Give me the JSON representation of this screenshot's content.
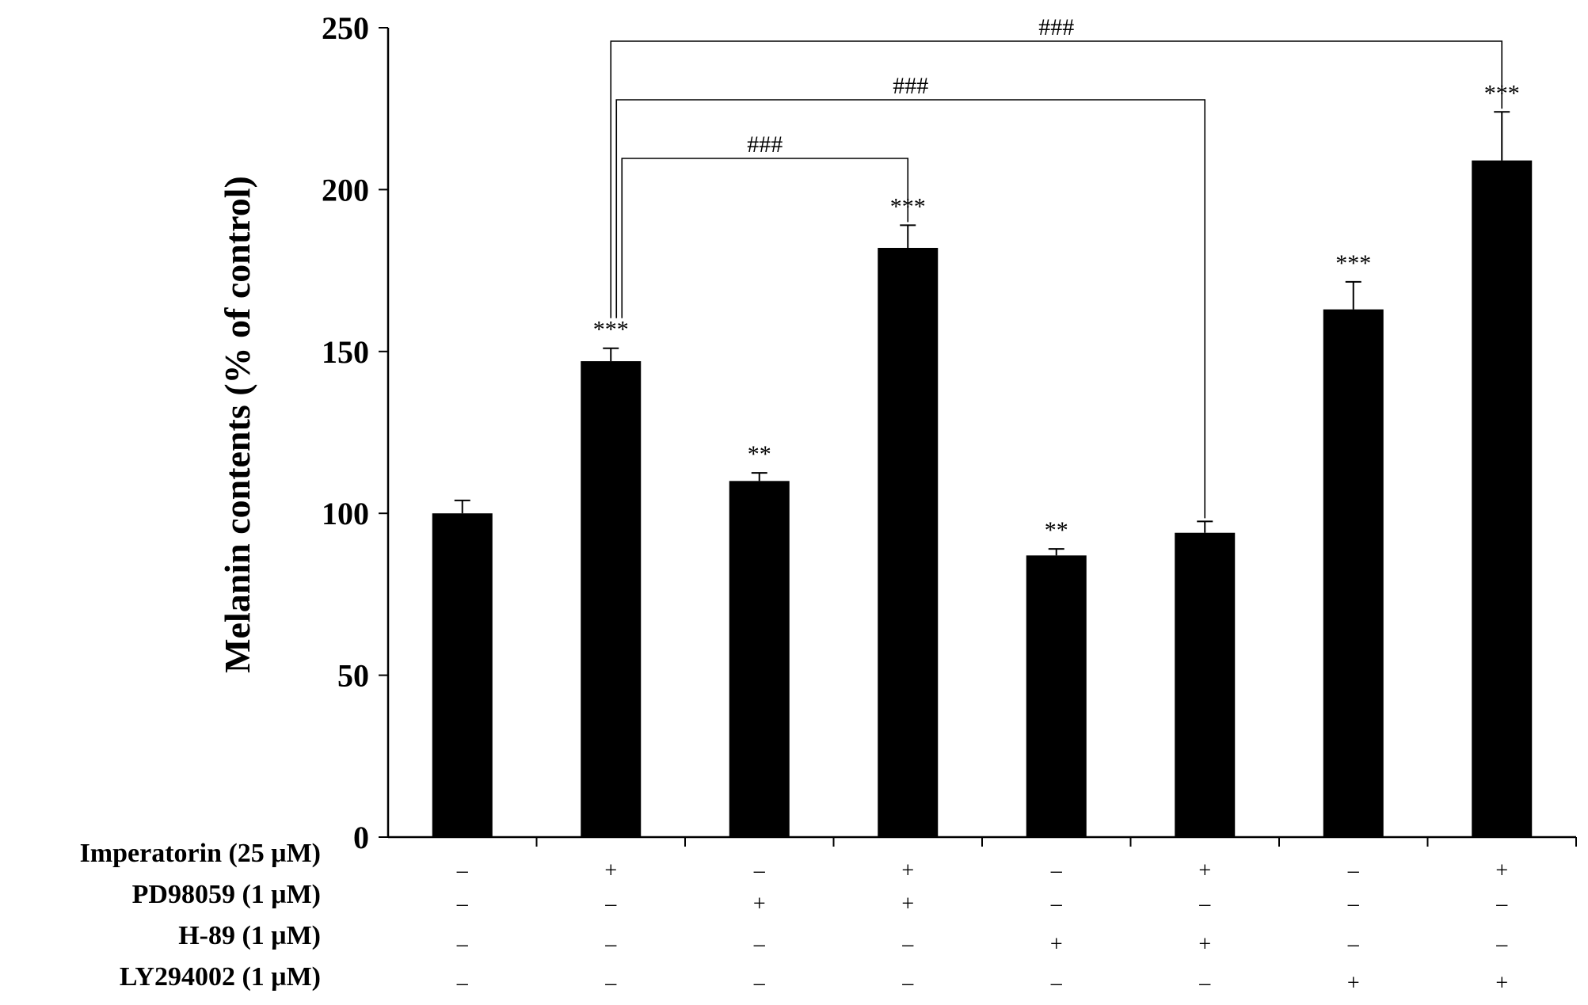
{
  "chart_data": {
    "type": "bar",
    "title": "",
    "xlabel": "",
    "ylabel": "Melanin contents (% of control)",
    "ylim": [
      0,
      250
    ],
    "yticks": [
      0,
      50,
      100,
      150,
      200,
      250
    ],
    "grid": false,
    "legend": "none",
    "bar_color": "#000000",
    "values": [
      100,
      147,
      110,
      182,
      87,
      94,
      163,
      209
    ],
    "errors": [
      4,
      4,
      2.5,
      7,
      2,
      3.5,
      8.5,
      15
    ],
    "significance": [
      "",
      "***",
      "**",
      "***",
      "**",
      "",
      "***",
      "***"
    ],
    "conditions": [
      {
        "label": "Imperatorin (25 μM)",
        "signs": [
          "–",
          "+",
          "–",
          "+",
          "–",
          "+",
          "–",
          "+"
        ]
      },
      {
        "label": "PD98059 (1 μM)",
        "signs": [
          "–",
          "–",
          "+",
          "+",
          "–",
          "–",
          "–",
          "–"
        ]
      },
      {
        "label": "H-89 (1 μM)",
        "signs": [
          "–",
          "–",
          "–",
          "–",
          "+",
          "+",
          "–",
          "–"
        ]
      },
      {
        "label": "LY294002 (1 μM)",
        "signs": [
          "–",
          "–",
          "–",
          "–",
          "–",
          "–",
          "+",
          "+"
        ]
      }
    ],
    "comparisons": [
      {
        "from": 1,
        "to": 3,
        "label": "###"
      },
      {
        "from": 1,
        "to": 5,
        "label": "###"
      },
      {
        "from": 1,
        "to": 7,
        "label": "###"
      }
    ]
  }
}
